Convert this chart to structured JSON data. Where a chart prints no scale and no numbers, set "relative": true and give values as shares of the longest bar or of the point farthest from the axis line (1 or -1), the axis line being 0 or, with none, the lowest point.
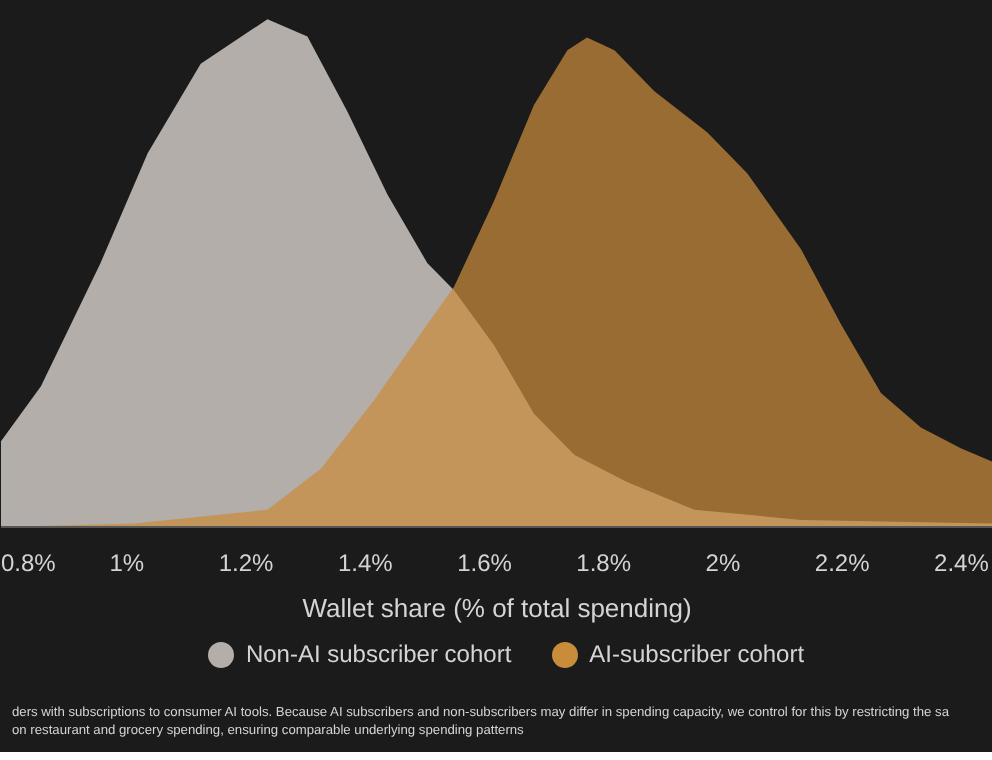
{
  "chart_data": {
    "type": "area",
    "relative": true,
    "xlabel": "Wallet share (% of total spending)",
    "xlim": [
      0.789,
      2.453
    ],
    "xticks": [
      {
        "value": 0.8,
        "label": "0.8%"
      },
      {
        "value": 1.0,
        "label": "1%"
      },
      {
        "value": 1.2,
        "label": "1.2%"
      },
      {
        "value": 1.4,
        "label": "1.4%"
      },
      {
        "value": 1.6,
        "label": "1.6%"
      },
      {
        "value": 1.8,
        "label": "1.8%"
      },
      {
        "value": 2.0,
        "label": "2%"
      },
      {
        "value": 2.2,
        "label": "2.2%"
      },
      {
        "value": 2.4,
        "label": "2.4%"
      }
    ],
    "grid": false,
    "legend": "bottom",
    "series": [
      {
        "name": "Non-AI subscriber cohort",
        "color": "#b3aea9",
        "x": [
          0.789,
          0.856,
          0.956,
          1.035,
          1.124,
          1.236,
          1.303,
          1.37,
          1.437,
          1.504,
          1.549,
          1.616,
          1.683,
          1.751,
          1.84,
          1.952,
          2.131,
          2.453
        ],
        "values": [
          0.169,
          0.277,
          0.52,
          0.736,
          0.912,
          1.0,
          0.966,
          0.818,
          0.655,
          0.52,
          0.466,
          0.358,
          0.223,
          0.142,
          0.088,
          0.034,
          0.014,
          0.007
        ]
      },
      {
        "name": "AI-subscriber cohort",
        "color": "#c98c3b",
        "x": [
          0.789,
          1.012,
          1.236,
          1.326,
          1.415,
          1.504,
          1.549,
          1.616,
          1.683,
          1.739,
          1.772,
          1.818,
          1.885,
          1.974,
          2.041,
          2.131,
          2.198,
          2.265,
          2.332,
          2.399,
          2.453
        ],
        "values": [
          0.0,
          0.007,
          0.034,
          0.115,
          0.25,
          0.399,
          0.473,
          0.642,
          0.831,
          0.939,
          0.964,
          0.939,
          0.858,
          0.777,
          0.696,
          0.547,
          0.399,
          0.264,
          0.196,
          0.155,
          0.128
        ]
      }
    ],
    "annotations": [
      "ders with subscriptions to consumer AI tools. Because AI subscribers and non-subscribers may differ in spending capacity, we control for this by restricting the sa",
      "on restaurant and grocery spending, ensuring comparable underlying spending patterns"
    ]
  }
}
